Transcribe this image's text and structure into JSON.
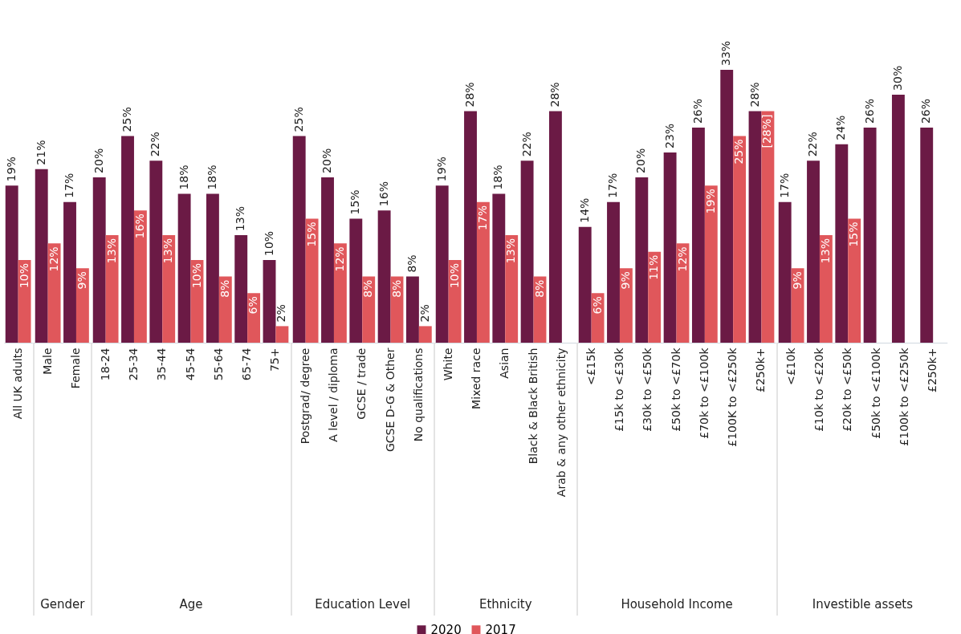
{
  "chart_data": [
    {
      "type": "bar",
      "legend": "bottom",
      "categories": [
        "All UK adults"
      ],
      "series": [
        {
          "name": "2020",
          "color": "#6b1a45",
          "values": [
            19
          ],
          "value_labels": [
            "19%"
          ]
        },
        {
          "name": "2017",
          "color": "#e0575b",
          "values": [
            10
          ],
          "value_labels": [
            "10%"
          ]
        }
      ]
    },
    {
      "type": "bar",
      "xlabel": "Gender",
      "categories": [
        "Male",
        "Female"
      ],
      "series": [
        {
          "color": "#6b1a45",
          "values": [
            21,
            17
          ],
          "value_labels": [
            "21%",
            "17%"
          ]
        },
        {
          "color": "#e0575b",
          "values": [
            12,
            9
          ],
          "value_labels": [
            "12%",
            "9%"
          ]
        }
      ]
    },
    {
      "type": "bar",
      "xlabel": "Age",
      "categories": [
        "18-24",
        "25-34",
        "35-44",
        "45-54",
        "55-64",
        "65-74",
        "75+"
      ],
      "series": [
        {
          "color": "#6b1a45",
          "values": [
            20,
            25,
            22,
            18,
            18,
            13,
            10
          ],
          "value_labels": [
            "20%",
            "25%",
            "22%",
            "18%",
            "18%",
            "13%",
            "10%"
          ]
        },
        {
          "color": "#e0575b",
          "values": [
            13,
            16,
            13,
            10,
            8,
            6,
            2
          ],
          "value_labels": [
            "13%",
            "16%",
            "13%",
            "10%",
            "8%",
            "6%",
            "2%"
          ]
        }
      ]
    },
    {
      "type": "bar",
      "xlabel": "Education Level",
      "categories": [
        "Postgrad/ degree",
        "A level / diploma",
        "GCSE / trade",
        "GCSE D-G & Other",
        "No qualifications"
      ],
      "series": [
        {
          "color": "#6b1a45",
          "values": [
            25,
            20,
            15,
            16,
            8
          ],
          "value_labels": [
            "25%",
            "20%",
            "15%",
            "16%",
            "8%"
          ]
        },
        {
          "color": "#e0575b",
          "values": [
            15,
            12,
            8,
            8,
            2
          ],
          "value_labels": [
            "15%",
            "12%",
            "8%",
            "8%",
            "2%"
          ]
        }
      ]
    },
    {
      "type": "bar",
      "xlabel": "Ethnicity",
      "categories": [
        "White",
        "Mixed race",
        "Asian",
        "Black & Black British",
        "Arab & any other ethnicity"
      ],
      "series": [
        {
          "color": "#6b1a45",
          "values": [
            19,
            28,
            18,
            22,
            28
          ],
          "value_labels": [
            "19%",
            "28%",
            "18%",
            "22%",
            "28%"
          ]
        },
        {
          "color": "#e0575b",
          "values": [
            10,
            17,
            13,
            8,
            null
          ],
          "value_labels": [
            "10%",
            "17%",
            "13%",
            "8%",
            null
          ]
        }
      ]
    },
    {
      "type": "bar",
      "xlabel": "Household Income",
      "categories": [
        "<£15k",
        "£15k to <£30k",
        "£30k to <£50k",
        "£50k to <£70k",
        "£70k to <£100k",
        "£100K to <£250k",
        "£250k+"
      ],
      "series": [
        {
          "color": "#6b1a45",
          "values": [
            14,
            17,
            20,
            23,
            26,
            33,
            28
          ],
          "value_labels": [
            "14%",
            "17%",
            "20%",
            "23%",
            "26%",
            "33%",
            "28%"
          ]
        },
        {
          "color": "#e0575b",
          "values": [
            6,
            9,
            11,
            12,
            19,
            25,
            28
          ],
          "value_labels": [
            "6%",
            "9%",
            "11%",
            "12%",
            "19%",
            "25%",
            "[28%]"
          ]
        }
      ]
    },
    {
      "type": "bar",
      "xlabel": "Investible assets",
      "categories": [
        "<£10k",
        "£10k to <£20k",
        "£20k to <£50k",
        "£50k to <£100k",
        "£100k to <£250k",
        "£250k+"
      ],
      "series": [
        {
          "color": "#6b1a45",
          "values": [
            17,
            22,
            24,
            26,
            30,
            26
          ],
          "value_labels": [
            "17%",
            "22%",
            "24%",
            "26%",
            "30%",
            "26%"
          ]
        },
        {
          "color": "#e0575b",
          "values": [
            9,
            13,
            15,
            null,
            null,
            null
          ],
          "value_labels": [
            "9%",
            "13%",
            "15%",
            null,
            null,
            null
          ]
        }
      ]
    }
  ]
}
